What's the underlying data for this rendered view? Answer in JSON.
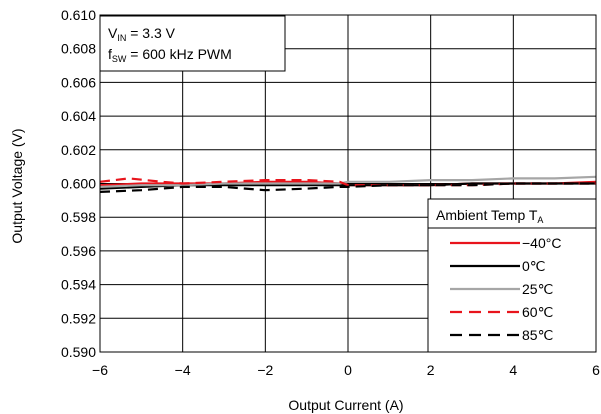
{
  "chart_data": {
    "type": "line",
    "xlabel": "Output Current (A)",
    "ylabel": "Output Voltage (V)",
    "xlim": [
      -6,
      6
    ],
    "ylim": [
      0.59,
      0.61
    ],
    "x_ticks": [
      "−6",
      "−4",
      "−2",
      "0",
      "2",
      "4",
      "6"
    ],
    "y_ticks": [
      "0.590",
      "0.592",
      "0.594",
      "0.596",
      "0.598",
      "0.600",
      "0.602",
      "0.604",
      "0.606",
      "0.608",
      "0.610"
    ],
    "grid": true,
    "annotation": {
      "vin_symbol": "V",
      "vin_sub": "IN",
      "vin_value": " = 3.3 V",
      "fsw_symbol": "f",
      "fsw_sub": "SW",
      "fsw_value": " = 600 kHz PWM"
    },
    "legend": {
      "title": "Ambient Temp T",
      "title_sub": "A",
      "placement": "bottom-right"
    },
    "series": [
      {
        "name": "−40°C",
        "color": "#e8141c",
        "dash": "solid",
        "x": [
          -6,
          -5,
          -4,
          -3,
          -2,
          -1,
          -0.2,
          0,
          1,
          2,
          3,
          4,
          5,
          6
        ],
        "y": [
          0.5999,
          0.6,
          0.6,
          0.6,
          0.6001,
          0.6001,
          0.6,
          0.5999,
          0.5999,
          0.5999,
          0.6,
          0.6,
          0.6,
          0.6001
        ]
      },
      {
        "name": "0℃",
        "color": "#000000",
        "dash": "solid",
        "x": [
          -6,
          -5,
          -4,
          -3,
          -2,
          -1,
          -0.2,
          0,
          1,
          2,
          3,
          4,
          5,
          6
        ],
        "y": [
          0.5997,
          0.5998,
          0.5999,
          0.5999,
          0.5999,
          0.5999,
          0.5999,
          0.5999,
          0.5999,
          0.5999,
          0.6,
          0.6,
          0.6,
          0.6
        ]
      },
      {
        "name": "25℃",
        "color": "#a6a6a6",
        "dash": "solid",
        "x": [
          -6,
          -5,
          -4,
          -3,
          -2,
          -1,
          -0.2,
          0,
          1,
          2,
          3,
          4,
          5,
          6
        ],
        "y": [
          0.5998,
          0.5999,
          0.5999,
          0.6,
          0.6,
          0.6,
          0.6,
          0.6001,
          0.6001,
          0.6002,
          0.6002,
          0.6003,
          0.6003,
          0.6004
        ]
      },
      {
        "name": "60℃",
        "color": "#e8141c",
        "dash": "dashed",
        "x": [
          -6,
          -5.3,
          -4.5,
          -4,
          -3,
          -2,
          -1,
          -0.2,
          0,
          1,
          2,
          3,
          4,
          5,
          6
        ],
        "y": [
          0.6001,
          0.6003,
          0.6001,
          0.6,
          0.6001,
          0.6002,
          0.6002,
          0.6001,
          0.5999,
          0.5999,
          0.5999,
          0.5999,
          0.6,
          0.6,
          0.6
        ]
      },
      {
        "name": "85℃",
        "color": "#000000",
        "dash": "dashed",
        "x": [
          -6,
          -5,
          -4,
          -3,
          -2,
          -1,
          -0.2,
          0,
          1,
          2,
          3,
          4,
          5,
          6
        ],
        "y": [
          0.5995,
          0.5996,
          0.5998,
          0.5998,
          0.5996,
          0.5997,
          0.5998,
          0.5998,
          0.5999,
          0.5999,
          0.5999,
          0.6,
          0.6,
          0.6
        ]
      }
    ]
  }
}
